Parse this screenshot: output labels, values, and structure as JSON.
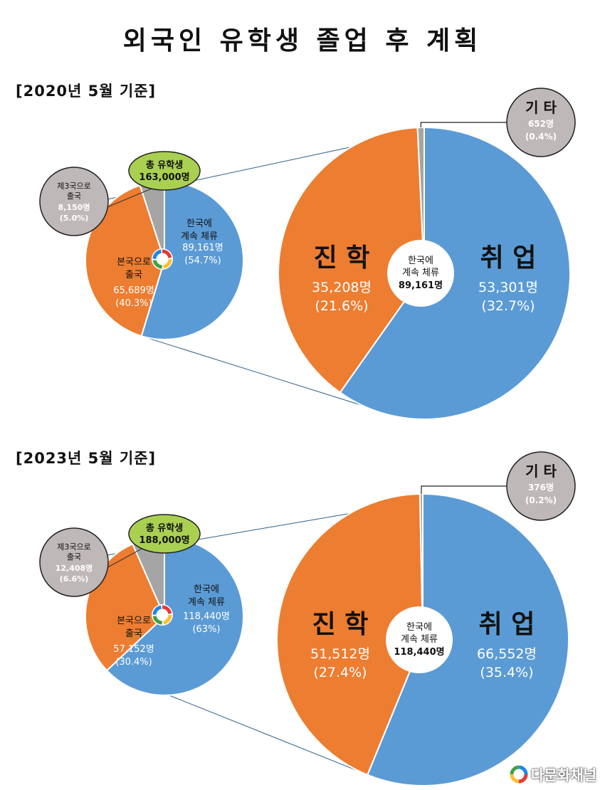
{
  "title": "외국인 유학생 졸업 후 계획",
  "watermark": "다문화채널",
  "colors": {
    "blue": "#5b9bd5",
    "orange": "#ed7d31",
    "gray": "#a5a5a5",
    "green": "#a9d051",
    "bubble_gray": "#bfb8b8"
  },
  "chart_data": [
    {
      "type": "pie",
      "period": "[2020년 5월 기준]",
      "total_label": "총 유학생",
      "total_value": "163,000명",
      "slices": [
        {
          "name_lines": [
            "한국에",
            "계속 체류"
          ],
          "value": "89,161명",
          "percent": "(54.7%)",
          "share": 54.7,
          "color": "blue"
        },
        {
          "name_lines": [
            "본국으로",
            "출국"
          ],
          "value": "65,689명",
          "percent": "(40.3%)",
          "share": 40.3,
          "color": "orange"
        },
        {
          "name_lines": [
            "제3국으로",
            "출국"
          ],
          "value": "8,150명",
          "percent": "(5.0%)",
          "share": 5.0,
          "color": "gray"
        }
      ],
      "breakdown": {
        "center_lines": [
          "한국에",
          "계속 체류"
        ],
        "center_value": "89,161명",
        "slices": [
          {
            "name": "취 업",
            "value": "53,301명",
            "percent": "(32.7%)",
            "share": 32.7,
            "color": "blue"
          },
          {
            "name": "진 학",
            "value": "35,208명",
            "percent": "(21.6%)",
            "share": 21.6,
            "color": "orange"
          },
          {
            "name": "기 타",
            "value": "652명",
            "percent": "(0.4%)",
            "share": 0.4,
            "color": "gray"
          }
        ]
      }
    },
    {
      "type": "pie",
      "period": "[2023년 5월 기준]",
      "total_label": "총 유학생",
      "total_value": "188,000명",
      "slices": [
        {
          "name_lines": [
            "한국에",
            "계속 체류"
          ],
          "value": "118,440명",
          "percent": "(63%)",
          "share": 63.0,
          "color": "blue"
        },
        {
          "name_lines": [
            "본국으로",
            "출국"
          ],
          "value": "57,152명",
          "percent": "(30.4%)",
          "share": 30.4,
          "color": "orange"
        },
        {
          "name_lines": [
            "제3국으로",
            "출국"
          ],
          "value": "12,408명",
          "percent": "(6.6%)",
          "share": 6.6,
          "color": "gray"
        }
      ],
      "breakdown": {
        "center_lines": [
          "한국에",
          "계속 체류"
        ],
        "center_value": "118,440명",
        "slices": [
          {
            "name": "취 업",
            "value": "66,552명",
            "percent": "(35.4%)",
            "share": 35.4,
            "color": "blue"
          },
          {
            "name": "진 학",
            "value": "51,512명",
            "percent": "(27.4%)",
            "share": 27.4,
            "color": "orange"
          },
          {
            "name": "기 타",
            "value": "376명",
            "percent": "(0.2%)",
            "share": 0.2,
            "color": "gray"
          }
        ]
      }
    }
  ]
}
